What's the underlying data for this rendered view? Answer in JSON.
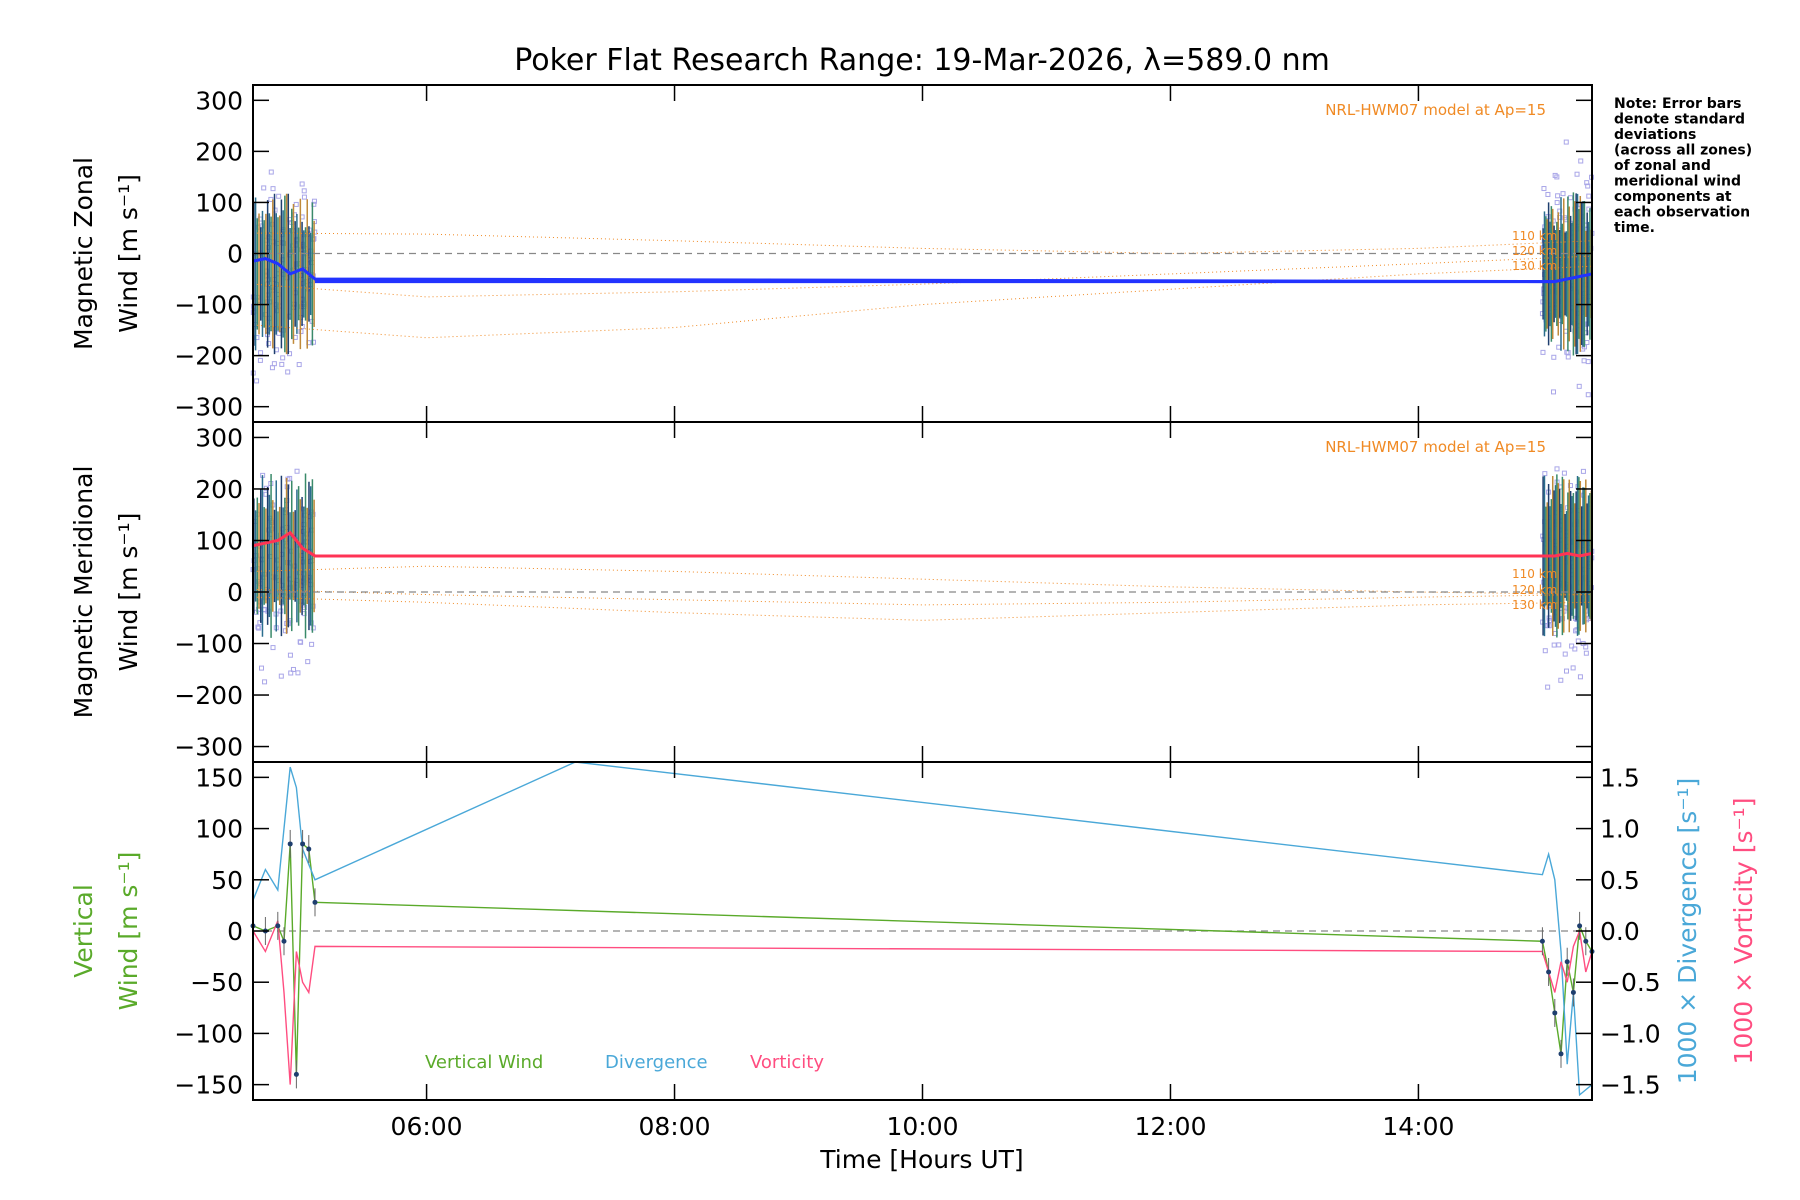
{
  "chart_data": {
    "type": "line",
    "title": "Poker Flat Research Range: 19-Mar-2026, λ=589.0 nm",
    "xlabel": "Time [Hours UT]",
    "xlim": [
      4.6,
      15.4
    ],
    "x_tick_labels": [
      "06:00",
      "08:00",
      "10:00",
      "12:00",
      "14:00"
    ],
    "x_ticks": [
      6,
      8,
      10,
      12,
      14
    ],
    "note_lines": [
      "Note: Error bars",
      "denote standard",
      "deviations",
      "(across all zones)",
      "of zonal and",
      "meridional wind",
      "components at",
      "each observation",
      "time."
    ],
    "panels": [
      {
        "id": "zonal",
        "ylabel_lines": [
          "Magnetic Zonal",
          "Wind [m s⁻¹]"
        ],
        "ylim": [
          -330,
          330
        ],
        "y_ticks": [
          -300,
          -200,
          -100,
          0,
          100,
          200,
          300
        ],
        "y_tick_labels": [
          "−300",
          "−200",
          "−100",
          "0",
          "100",
          "200",
          "300"
        ],
        "model_label": "NRL-HWM07 model at Ap=15",
        "altitude_labels": [
          "110 km",
          "120 km",
          "130 km"
        ],
        "series": [
          {
            "name": "Zonal wind",
            "color": "#2233ff",
            "x": [
              4.6,
              4.7,
              4.8,
              4.9,
              5.0,
              5.1,
              15.1,
              15.2,
              15.3,
              15.4
            ],
            "values": [
              -15,
              -10,
              -20,
              -40,
              -30,
              -50,
              -55,
              -50,
              -45,
              -40
            ]
          },
          {
            "name": "Zonal wind (average)",
            "color": "#2233ff",
            "x": [
              5.1,
              15.1
            ],
            "values": [
              -55,
              -55
            ]
          }
        ],
        "model_curves": [
          {
            "name": "110 km",
            "x": [
              4.6,
              6,
              8,
              10,
              12,
              14,
              15.4
            ],
            "values": [
              40,
              38,
              25,
              10,
              0,
              10,
              25
            ]
          },
          {
            "name": "120 km",
            "x": [
              4.6,
              6,
              8,
              10,
              12,
              14,
              15.4
            ],
            "values": [
              -60,
              -85,
              -75,
              -60,
              -40,
              -20,
              -5
            ]
          },
          {
            "name": "130 km",
            "x": [
              4.6,
              6,
              8,
              10,
              12,
              14,
              15.4
            ],
            "values": [
              -140,
              -165,
              -145,
              -100,
              -70,
              -40,
              -25
            ]
          }
        ]
      },
      {
        "id": "meridional",
        "ylabel_lines": [
          "Magnetic Meridional",
          "Wind [m s⁻¹]"
        ],
        "ylim": [
          -330,
          330
        ],
        "y_ticks": [
          -300,
          -200,
          -100,
          0,
          100,
          200,
          300
        ],
        "y_tick_labels": [
          "−300",
          "−200",
          "−100",
          "0",
          "100",
          "200",
          "300"
        ],
        "model_label": "NRL-HWM07 model at Ap=15",
        "altitude_labels": [
          "110 km",
          "120 km",
          "130 km"
        ],
        "series": [
          {
            "name": "Meridional wind",
            "color": "#ff3355",
            "x": [
              4.6,
              4.7,
              4.8,
              4.9,
              5.0,
              5.1,
              15.1,
              15.2,
              15.3,
              15.4
            ],
            "values": [
              90,
              95,
              100,
              115,
              85,
              70,
              70,
              75,
              70,
              75
            ]
          },
          {
            "name": "Meridional wind (average)",
            "color": "#ff3355",
            "x": [
              5.1,
              15.1
            ],
            "values": [
              70,
              70
            ]
          }
        ],
        "model_curves": [
          {
            "name": "110 km",
            "x": [
              4.6,
              6,
              8,
              10,
              12,
              14,
              15.4
            ],
            "values": [
              40,
              50,
              40,
              25,
              10,
              0,
              -5
            ]
          },
          {
            "name": "120 km",
            "x": [
              4.6,
              6,
              8,
              10,
              12,
              14,
              15.4
            ],
            "values": [
              5,
              -5,
              -15,
              -25,
              -20,
              -10,
              -5
            ]
          },
          {
            "name": "130 km",
            "x": [
              4.6,
              6,
              8,
              10,
              12,
              14,
              15.4
            ],
            "values": [
              -10,
              -20,
              -40,
              -55,
              -40,
              -25,
              -20
            ]
          }
        ]
      },
      {
        "id": "vertical",
        "ylabel_lines": [
          "Vertical",
          "Wind [m s⁻¹]"
        ],
        "ylim": [
          -165,
          165
        ],
        "y_ticks": [
          -150,
          -100,
          -50,
          0,
          50,
          100,
          150
        ],
        "y_tick_labels": [
          "−150",
          "−100",
          "−50",
          "0",
          "50",
          "100",
          "150"
        ],
        "y2lim": [
          -1.65,
          1.65
        ],
        "y2_ticks": [
          -1.5,
          -1.0,
          -0.5,
          0.0,
          0.5,
          1.0,
          1.5
        ],
        "y2_tick_labels": [
          "−1.5",
          "−1.0",
          "−0.5",
          "0.0",
          "0.5",
          "1.0",
          "1.5"
        ],
        "y2label_divergence": "1000 × Divergence [s⁻¹]",
        "y2label_vorticity": "1000 × Vorticity [s⁻¹]",
        "legend": [
          "Vertical Wind",
          "Divergence",
          "Vorticity"
        ],
        "series": [
          {
            "name": "Vertical Wind",
            "color": "#5aaa2a",
            "x": [
              4.6,
              4.7,
              4.8,
              4.85,
              4.9,
              4.95,
              5.0,
              5.05,
              5.1,
              15.0,
              15.05,
              15.1,
              15.15,
              15.2,
              15.25,
              15.3,
              15.35,
              15.4
            ],
            "values": [
              5,
              0,
              5,
              -10,
              85,
              -140,
              85,
              80,
              28,
              -10,
              -40,
              -80,
              -120,
              -30,
              -60,
              5,
              -10,
              -20
            ]
          },
          {
            "name": "Divergence",
            "color": "#4aa8d8",
            "x": [
              4.6,
              4.7,
              4.8,
              4.85,
              4.9,
              4.95,
              5.0,
              5.1,
              7.2,
              15.0,
              15.05,
              15.1,
              15.15,
              15.2,
              15.25,
              15.3,
              15.4
            ],
            "values": [
              0.3,
              0.6,
              0.4,
              1.0,
              1.6,
              1.4,
              0.8,
              0.5,
              1.65,
              0.55,
              0.75,
              0.5,
              -0.2,
              -1.3,
              -0.6,
              -1.6,
              -1.5
            ]
          },
          {
            "name": "Vorticity",
            "color": "#ff4d80",
            "x": [
              4.6,
              4.7,
              4.8,
              4.85,
              4.9,
              4.95,
              5.0,
              5.05,
              5.1,
              15.0,
              15.05,
              15.1,
              15.15,
              15.2,
              15.25,
              15.3,
              15.35,
              15.4
            ],
            "values": [
              0.0,
              -0.2,
              0.1,
              -0.6,
              -1.5,
              -0.2,
              -0.5,
              -0.6,
              -0.15,
              -0.2,
              -0.4,
              -0.6,
              -0.3,
              -0.5,
              -0.15,
              0.0,
              -0.4,
              -0.2
            ]
          }
        ]
      }
    ]
  }
}
